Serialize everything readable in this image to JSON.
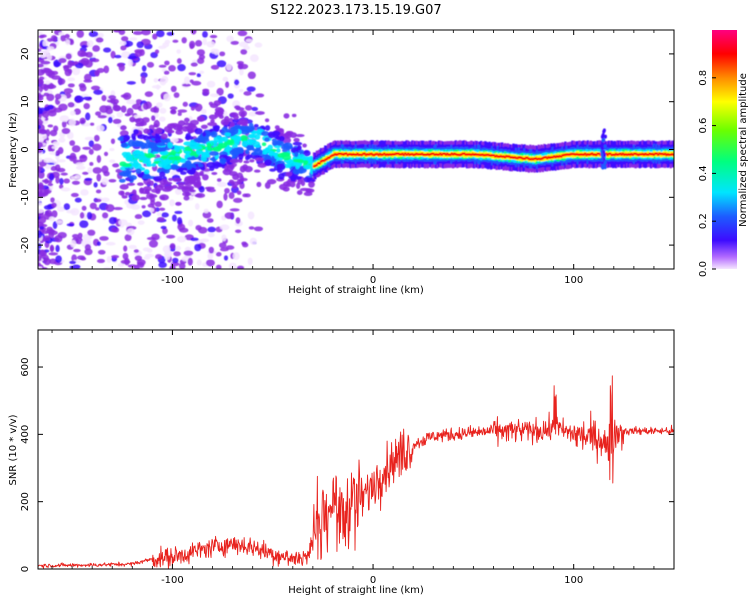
{
  "figure": {
    "title": "S122.2023.173.15.19.G07"
  },
  "colors": {
    "snr_line": "#e8231e",
    "colormap": [
      "#f5e6ff",
      "#8a2be2",
      "#3d0bff",
      "#1d5cff",
      "#00e5ff",
      "#00ff7f",
      "#6bff00",
      "#ffff00",
      "#ff8c00",
      "#ff0000",
      "#ff0080"
    ]
  },
  "chart_data": [
    {
      "type": "heatmap",
      "name": "spectrogram",
      "xlabel": "Height of straight line (km)",
      "ylabel": "Frequency (Hz)",
      "xlim": [
        -167,
        150
      ],
      "ylim": [
        -25,
        25
      ],
      "xticks": [
        -100,
        0,
        100
      ],
      "yticks": [
        -20,
        -10,
        0,
        10,
        20
      ],
      "colorbar": {
        "label": "Normalized spectral amplitude",
        "range": [
          0.0,
          1.0
        ],
        "ticks": [
          "0.0",
          "0.2",
          "0.4",
          "0.6",
          "0.8"
        ]
      },
      "ridge_frequency_hz": [
        [
          -120,
          -2.0
        ],
        [
          -100,
          -1.5
        ],
        [
          -80,
          0.5
        ],
        [
          -60,
          2.5
        ],
        [
          -45,
          -1.5
        ],
        [
          -30,
          -3.5
        ],
        [
          -20,
          -1.0
        ],
        [
          0,
          -1.0
        ],
        [
          50,
          -1.0
        ],
        [
          80,
          -2.0
        ],
        [
          100,
          -1.0
        ],
        [
          120,
          -1.0
        ],
        [
          150,
          -1.0
        ]
      ]
    },
    {
      "type": "line",
      "name": "snr",
      "xlabel": "Height of straight line (km)",
      "ylabel": "SNR (10 * v/v)",
      "xlim": [
        -167,
        150
      ],
      "ylim": [
        0,
        710
      ],
      "xticks": [
        -100,
        0,
        100
      ],
      "yticks": [
        0,
        200,
        400,
        600
      ],
      "series": [
        {
          "x": [
            -167,
            -140,
            -120,
            -110,
            -100,
            -90,
            -80,
            -70,
            -60,
            -50,
            -40,
            -32,
            -28,
            -20,
            -15,
            -10,
            -5,
            0,
            5,
            10,
            20,
            30,
            40,
            50,
            60,
            70,
            80,
            90,
            95,
            100,
            110,
            115,
            118,
            119,
            120,
            121,
            125,
            135,
            150
          ],
          "y": [
            10,
            12,
            15,
            30,
            35,
            50,
            65,
            75,
            65,
            45,
            30,
            40,
            150,
            200,
            150,
            210,
            210,
            250,
            290,
            320,
            370,
            395,
            400,
            405,
            410,
            410,
            410,
            415,
            410,
            400,
            390,
            385,
            330,
            220,
            410,
            405,
            410,
            410,
            410
          ]
        }
      ]
    }
  ]
}
